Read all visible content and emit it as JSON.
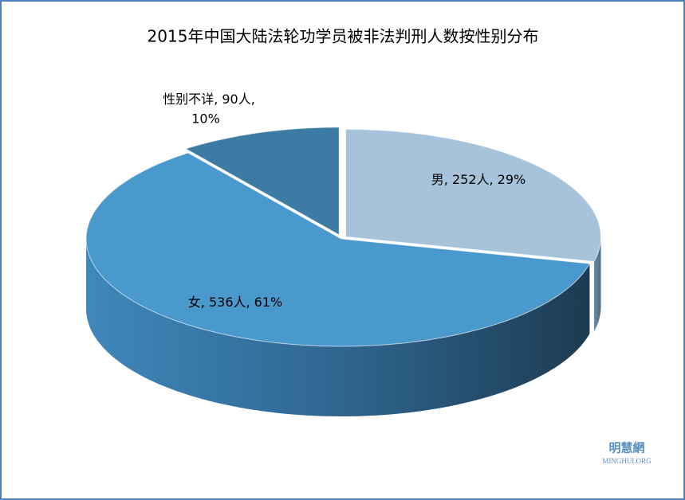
{
  "chart_data": {
    "type": "pie3d",
    "title": "2015年中国大陆法轮功学员被非法判刑人数按性别分布",
    "categories": [
      "男",
      "女",
      "性别不详"
    ],
    "values": [
      252,
      536,
      90
    ],
    "value_labels": [
      "252人",
      "536人",
      "90人"
    ],
    "percent_labels": [
      "29%",
      "61%",
      "10%"
    ],
    "label_separator": ", ",
    "colors": [
      "#a7c3dc",
      "#4a99cc",
      "#3b7ba4"
    ],
    "watermark": {
      "name": "明慧網",
      "site": "MINGHUI.ORG"
    }
  }
}
